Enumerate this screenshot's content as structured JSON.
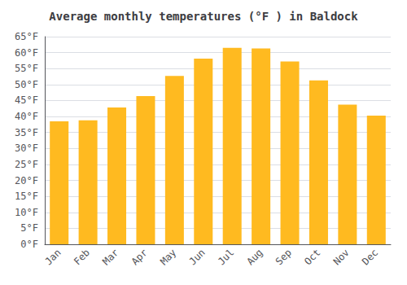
{
  "chart_data": {
    "type": "bar",
    "title": "Average monthly temperatures (°F ) in Baldock",
    "categories": [
      "Jan",
      "Feb",
      "Mar",
      "Apr",
      "May",
      "Jun",
      "Jul",
      "Aug",
      "Sep",
      "Oct",
      "Nov",
      "Dec"
    ],
    "values": [
      38.5,
      38.8,
      42.8,
      46.4,
      52.7,
      58.1,
      61.5,
      61.3,
      57.2,
      51.3,
      43.7,
      40.3
    ],
    "color": "#FFBA20",
    "ylim": [
      0,
      65
    ],
    "yticks": [
      {
        "value": 0,
        "label": "0°F"
      },
      {
        "value": 5,
        "label": "5°F"
      },
      {
        "value": 10,
        "label": "10°F"
      },
      {
        "value": 15,
        "label": "15°F"
      },
      {
        "value": 20,
        "label": "20°F"
      },
      {
        "value": 25,
        "label": "25°F"
      },
      {
        "value": 30,
        "label": "30°F"
      },
      {
        "value": 35,
        "label": "35°F"
      },
      {
        "value": 40,
        "label": "40°F"
      },
      {
        "value": 45,
        "label": "45°F"
      },
      {
        "value": 50,
        "label": "50°F"
      },
      {
        "value": 55,
        "label": "55°F"
      },
      {
        "value": 60,
        "label": "60°F"
      },
      {
        "value": 65,
        "label": "65°F"
      }
    ],
    "grid": true
  }
}
